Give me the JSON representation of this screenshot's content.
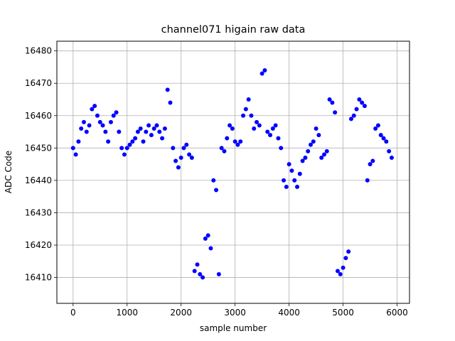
{
  "chart_data": {
    "type": "scatter",
    "title": "channel071 higain raw data",
    "xlabel": "sample number",
    "ylabel": "ADC Code",
    "xlim": [
      -300,
      6230
    ],
    "ylim": [
      16402,
      16483
    ],
    "xticks": [
      0,
      1000,
      2000,
      3000,
      4000,
      5000,
      6000
    ],
    "yticks": [
      16410,
      16420,
      16430,
      16440,
      16450,
      16460,
      16470,
      16480
    ],
    "grid": true,
    "marker_color": "#0000ff",
    "series": [
      {
        "x": [
          0,
          50,
          100,
          150,
          200,
          250,
          300,
          350,
          400,
          450,
          500,
          550,
          600,
          650,
          700,
          750,
          800,
          850,
          900,
          950,
          1000,
          1050,
          1100,
          1150,
          1200,
          1250,
          1300,
          1350,
          1400,
          1450,
          1500,
          1550,
          1600,
          1650,
          1700,
          1750,
          1800,
          1850,
          1900,
          1950,
          2000,
          2050,
          2100,
          2150,
          2200,
          2250,
          2300,
          2350,
          2400,
          2450,
          2500,
          2550,
          2600,
          2650,
          2700,
          2750,
          2800,
          2850,
          2900,
          2950,
          3000,
          3050,
          3100,
          3150,
          3200,
          3250,
          3300,
          3350,
          3400,
          3450,
          3500,
          3550,
          3600,
          3650,
          3700,
          3750,
          3800,
          3850,
          3900,
          3950,
          4000,
          4050,
          4100,
          4150,
          4200,
          4250,
          4300,
          4350,
          4400,
          4450,
          4500,
          4550,
          4600,
          4650,
          4700,
          4750,
          4800,
          4850,
          4900,
          4950,
          5000,
          5050,
          5100,
          5150,
          5200,
          5250,
          5300,
          5350,
          5400,
          5450,
          5500,
          5550,
          5600,
          5650,
          5700,
          5750,
          5800,
          5850,
          5900
        ],
        "y": [
          16450,
          16448,
          16452,
          16456,
          16458,
          16455,
          16457,
          16462,
          16463,
          16460,
          16458,
          16457,
          16455,
          16452,
          16458,
          16460,
          16461,
          16455,
          16450,
          16448,
          16450,
          16451,
          16452,
          16453,
          16455,
          16456,
          16452,
          16455,
          16457,
          16454,
          16456,
          16457,
          16455,
          16453,
          16456,
          16468,
          16464,
          16450,
          16446,
          16444,
          16447,
          16450,
          16451,
          16448,
          16447,
          16412,
          16414,
          16411,
          16410,
          16422,
          16423,
          16419,
          16440,
          16437,
          16411,
          16450,
          16449,
          16453,
          16457,
          16456,
          16452,
          16451,
          16452,
          16460,
          16462,
          16465,
          16460,
          16456,
          16458,
          16457,
          16473,
          16474,
          16455,
          16454,
          16456,
          16457,
          16453,
          16450,
          16440,
          16438,
          16445,
          16443,
          16440,
          16438,
          16442,
          16446,
          16447,
          16449,
          16451,
          16452,
          16456,
          16454,
          16447,
          16448,
          16449,
          16465,
          16464,
          16461,
          16412,
          16411,
          16413,
          16416,
          16418,
          16459,
          16460,
          16462,
          16465,
          16464,
          16463,
          16440,
          16445,
          16446,
          16456,
          16457,
          16454,
          16453,
          16452,
          16449,
          16447
        ]
      }
    ]
  }
}
